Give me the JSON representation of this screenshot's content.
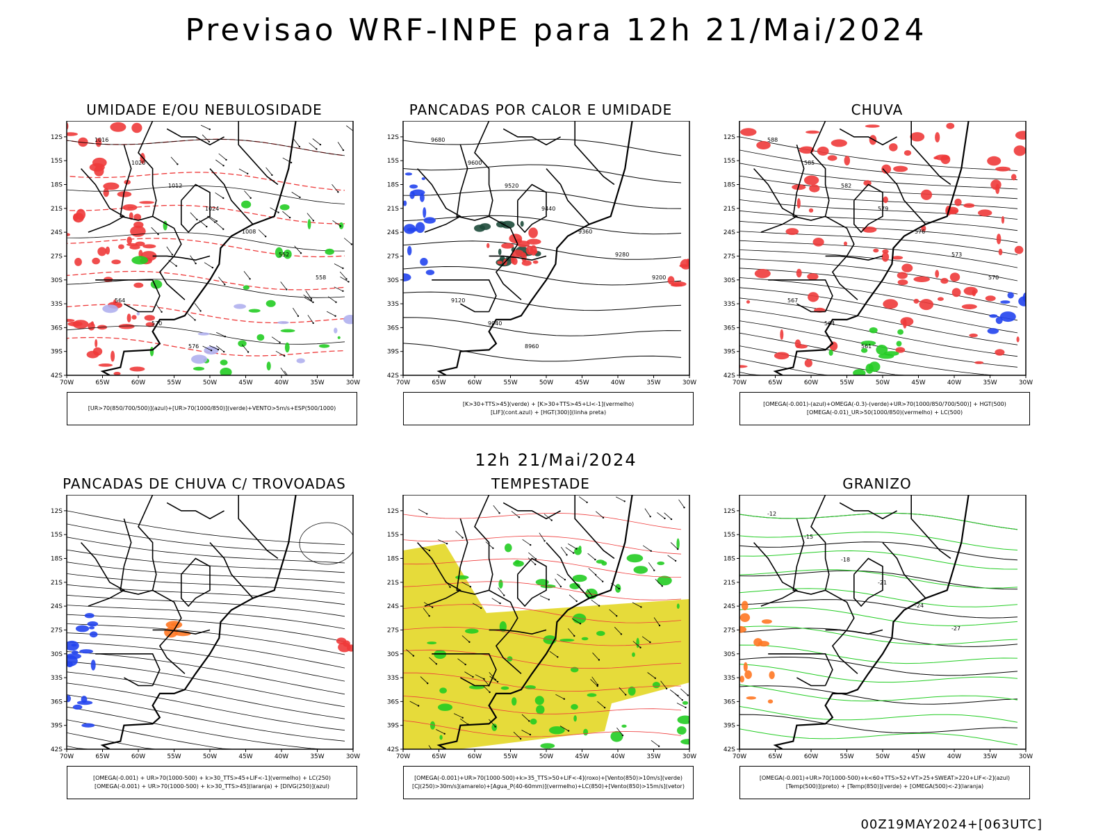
{
  "main_title": "Previsao WRF-INPE  para 12h 21/Mai/2024",
  "mid_label": "12h 21/Mai/2024",
  "footer": "00Z19MAY2024+[063UTC]",
  "y_ticks": [
    "12S",
    "15S",
    "18S",
    "21S",
    "24S",
    "27S",
    "30S",
    "33S",
    "36S",
    "39S",
    "42S"
  ],
  "x_ticks": [
    "70W",
    "65W",
    "60W",
    "55W",
    "50W",
    "45W",
    "40W",
    "35W",
    "30W"
  ],
  "colors": {
    "red": "#ee3a3a",
    "green": "#22cc22",
    "blue": "#2244ee",
    "yellow": "#e6db3a",
    "lavender": "#b0b0ee",
    "dark_green": "#1d4a3a",
    "orange": "#ff7722"
  },
  "panels": [
    {
      "title": "UMIDADE E/OU NEBULOSIDADE",
      "legend": [
        "[UR>70(850/700/500)](azul)+[UR>70(1000/850)](verde)+VENTO>5m/s+ESP(500/1000)",
        ""
      ],
      "contour_labels": [
        "1016",
        "1020",
        "1012",
        "1024",
        "1008",
        "552",
        "558",
        "564",
        "570",
        "576"
      ]
    },
    {
      "title": "PANCADAS POR CALOR E UMIDADE",
      "legend": [
        "[K>30+TTS>45](verde) + [K>30+TTS>45+LI<-1](vermelho)",
        "[LIF](cont.azul) + [HGT(300)](linha preta)"
      ],
      "contour_labels": [
        "9680",
        "9600",
        "9520",
        "9440",
        "9360",
        "9280",
        "9200",
        "9120",
        "9040",
        "8960"
      ]
    },
    {
      "title": "CHUVA",
      "legend": [
        "[OMEGA(-0.001)-(azul)+OMEGA(-0.3)-(verde)+UR>70(1000/850/700/500)] + HGT(500)",
        "[OMEGA(-0.01)_UR>50(1000/850)(vermelho) + LC(500)"
      ],
      "contour_labels": [
        "588",
        "585",
        "582",
        "579",
        "576",
        "573",
        "570",
        "567",
        "564",
        "561"
      ]
    },
    {
      "title": "PANCADAS DE CHUVA C/ TROVOADAS",
      "legend": [
        "[OMEGA(-0.001) + UR>70(1000-500) + k>30_TTS>45+LIF<-1](vermelho) + LC(250)",
        "[OMEGA(-0.001) + UR>70(1000-500) + k>30_TTS>45](laranja) + [DIVG(250)](azul)"
      ],
      "contour_labels": []
    },
    {
      "title": "TEMPESTADE",
      "legend": [
        "[OMEGA(-0.001)+UR>70(1000-500)+k>35_TTS>50+LIF<-4](roxo)+[Vento(850)>10m/s](verde)",
        "[CJ(250)>30m/s](amarelo)+[Agua_P(40-60mm)](vermelho)+LC(850)+[Vento(850)>15m/s](vetor)"
      ],
      "contour_labels": []
    },
    {
      "title": "GRANIZO",
      "legend": [
        "[OMEGA(-0.001)+UR>70(1000-500)+k<60+TTS>52+VT>25+SWEAT>220+LIF<-2](azul)",
        "[Temp(500)](preto) + [Temp(850)](verde) + [OMEGA(500)<-2](laranja)"
      ],
      "contour_labels": [
        "-12",
        "-15",
        "-18",
        "-21",
        "-24",
        "-27"
      ]
    }
  ]
}
